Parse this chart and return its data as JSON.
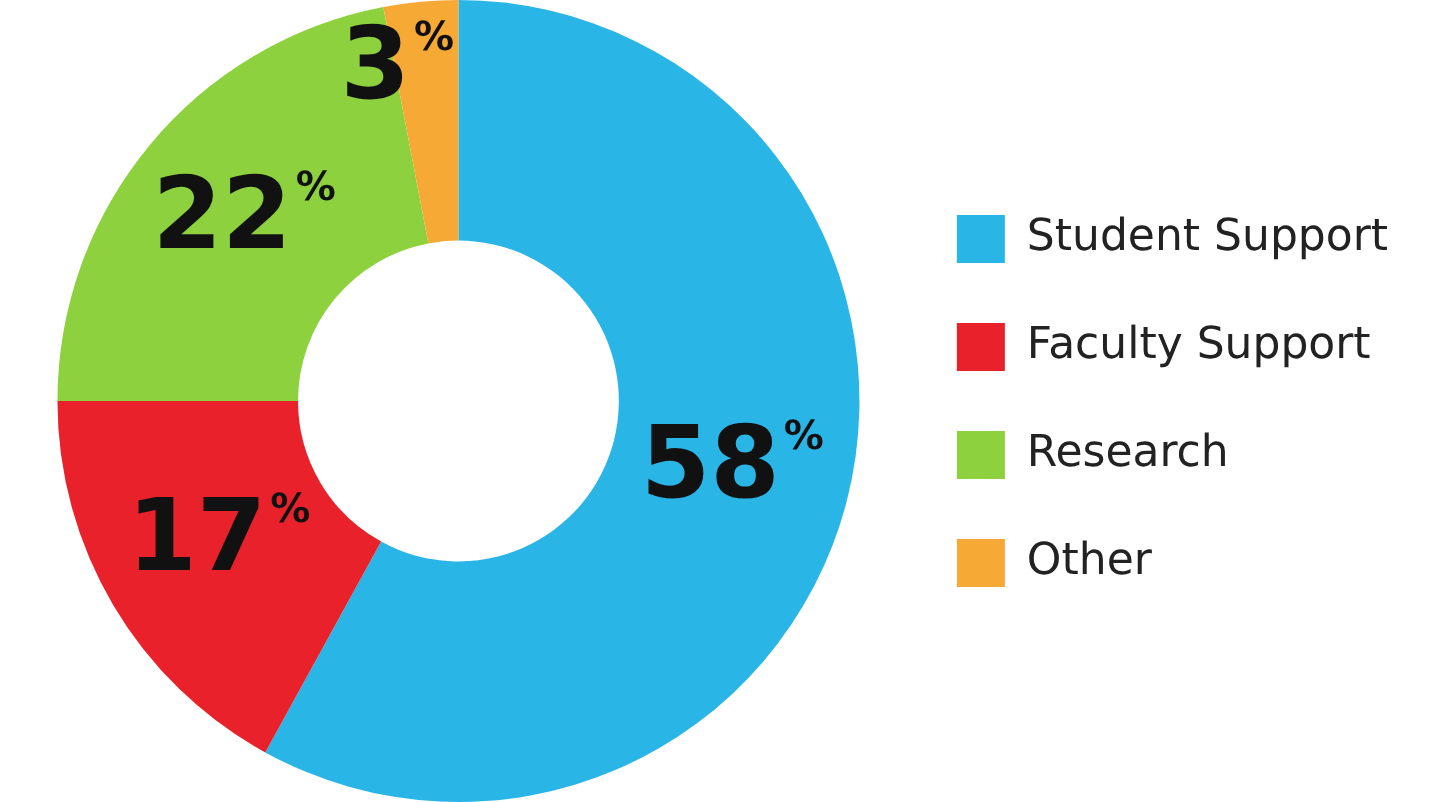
{
  "chart_data": {
    "type": "donut",
    "categories": [
      "Student Support",
      "Faculty Support",
      "Research",
      "Other"
    ],
    "values": [
      58,
      17,
      22,
      3
    ],
    "colors": [
      "#29b5e5",
      "#e8212b",
      "#8dd23e",
      "#f7a935"
    ],
    "value_labels": [
      "58%",
      "17%",
      "22%",
      "3%"
    ],
    "legend": "right"
  }
}
